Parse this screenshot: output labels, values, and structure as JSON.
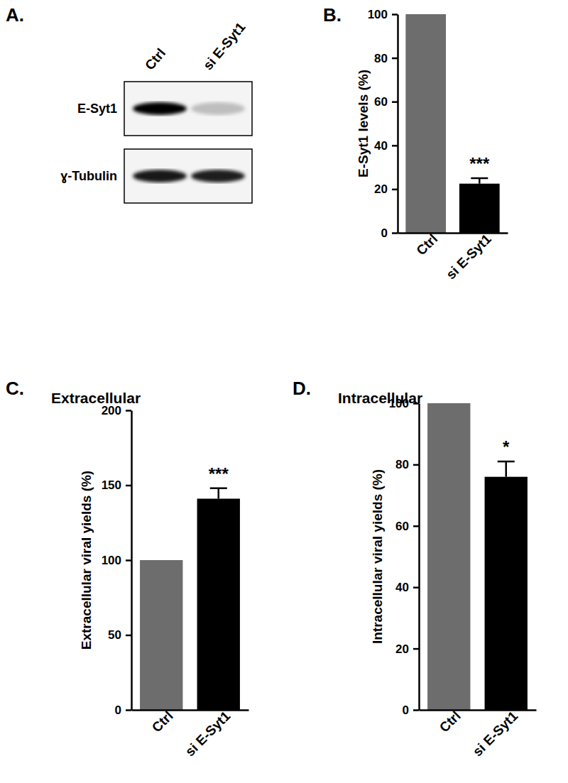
{
  "blot": {
    "panel": "A.",
    "lanes": [
      "Ctrl",
      "si E-Syt1"
    ],
    "rows": [
      {
        "name": "E-Syt1",
        "intensity": [
          100,
          22
        ]
      },
      {
        "name": "ɣ-Tubulin",
        "intensity": [
          90,
          88
        ]
      }
    ]
  },
  "chart_data": [
    {
      "type": "bar",
      "panel": "B.",
      "categories": [
        "Ctrl",
        "si E-Syt1"
      ],
      "values": [
        100,
        22.5
      ],
      "errors": [
        null,
        2.5
      ],
      "significance": [
        null,
        "***"
      ],
      "colors": [
        "#6d6d6d",
        "#000000"
      ],
      "y_label": "E-Syt1 levels (%)",
      "ylim": [
        0,
        100
      ],
      "yticks": [
        0,
        20,
        40,
        60,
        80,
        100
      ]
    },
    {
      "type": "bar",
      "panel": "C.",
      "title": "Extracellular",
      "categories": [
        "Ctrl",
        "si E-Syt1"
      ],
      "values": [
        100,
        141
      ],
      "errors": [
        null,
        7
      ],
      "significance": [
        null,
        "***"
      ],
      "colors": [
        "#6d6d6d",
        "#000000"
      ],
      "y_label": "Extracellular viral yields (%)",
      "ylim": [
        0,
        200
      ],
      "yticks": [
        0,
        50,
        100,
        150,
        200
      ]
    },
    {
      "type": "bar",
      "panel": "D.",
      "title": "Intracellular",
      "categories": [
        "Ctrl",
        "si E-Syt1"
      ],
      "values": [
        100,
        76
      ],
      "errors": [
        null,
        5
      ],
      "significance": [
        null,
        "*"
      ],
      "colors": [
        "#6d6d6d",
        "#000000"
      ],
      "y_label": "Intracellular viral yields (%)",
      "ylim": [
        0,
        100
      ],
      "yticks": [
        0,
        20,
        40,
        60,
        80,
        100
      ]
    }
  ]
}
